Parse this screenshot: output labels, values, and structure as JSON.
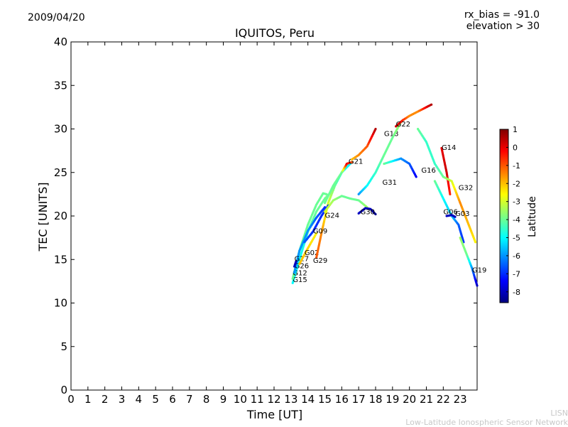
{
  "header": {
    "date": "2009/04/20",
    "rx_bias": "rx_bias = -91.0",
    "elevation": "elevation > 30"
  },
  "credits": {
    "line1": "LISN",
    "line2": "Low-Latitude Ionospheric Sensor Network"
  },
  "chart_data": {
    "type": "scatter",
    "title": "IQUITOS, Peru",
    "xlabel": "Time [UT]",
    "ylabel": "TEC [UNITS]",
    "xlim": [
      0,
      24
    ],
    "ylim": [
      0,
      40
    ],
    "xticks": [
      "0",
      "1",
      "2",
      "3",
      "4",
      "5",
      "6",
      "7",
      "8",
      "9",
      "10",
      "11",
      "12",
      "13",
      "14",
      "15",
      "16",
      "17",
      "18",
      "19",
      "20",
      "21",
      "22",
      "23"
    ],
    "yticks": [
      "0",
      "5",
      "10",
      "15",
      "20",
      "25",
      "30",
      "35",
      "40"
    ],
    "colorbar": {
      "label": "Latitude",
      "range": [
        -8.6,
        1.0
      ],
      "ticks": [
        "1",
        "0",
        "-1",
        "-2",
        "-3",
        "-4",
        "-5",
        "-6",
        "-7",
        "-8"
      ],
      "colors": [
        "#00007f",
        "#0000ff",
        "#007fff",
        "#00ffff",
        "#7fff7f",
        "#ffff00",
        "#ff7f00",
        "#ff0000",
        "#7f0000"
      ]
    },
    "series": [
      {
        "name": "G15",
        "label_at": [
          13.1,
          12.4
        ],
        "points": [
          [
            13.1,
            12.3,
            -5
          ],
          [
            13.5,
            15.0,
            -5
          ],
          [
            14.0,
            18.2,
            -4.5
          ],
          [
            14.5,
            20.5,
            -4
          ],
          [
            15.0,
            22.0,
            -4
          ],
          [
            15.5,
            23.0,
            -3.5
          ]
        ]
      },
      {
        "name": "G12",
        "label_at": [
          13.1,
          13.2
        ],
        "points": [
          [
            13.1,
            12.8,
            -4
          ],
          [
            13.5,
            16.0,
            -4
          ],
          [
            14.0,
            19.0,
            -4
          ],
          [
            14.5,
            21.3,
            -4
          ],
          [
            14.9,
            22.6,
            -4
          ],
          [
            15.1,
            22.5,
            -4
          ]
        ]
      },
      {
        "name": "G26",
        "label_at": [
          13.2,
          14.0
        ],
        "points": [
          [
            13.2,
            13.5,
            -6
          ],
          [
            13.5,
            16.0,
            -6
          ],
          [
            14.0,
            18.3,
            -6
          ],
          [
            14.5,
            19.8,
            -6.5
          ],
          [
            15.0,
            21.0,
            -7
          ]
        ]
      },
      {
        "name": "G27",
        "label_at": [
          13.2,
          14.8
        ],
        "points": [
          [
            13.2,
            14.2,
            -8
          ],
          [
            13.3,
            14.8,
            -8
          ]
        ]
      },
      {
        "name": "G02",
        "label_at": [
          13.8,
          15.5
        ],
        "points": [
          [
            13.5,
            14.5,
            -2
          ],
          [
            14.0,
            16.3,
            -2.2
          ],
          [
            14.5,
            18.0,
            -2.5
          ]
        ]
      },
      {
        "name": "G29",
        "label_at": [
          14.3,
          14.6
        ],
        "points": [
          [
            14.5,
            15.2,
            -1
          ],
          [
            14.8,
            18.0,
            -1.5
          ],
          [
            15.2,
            21.5,
            -3
          ],
          [
            15.6,
            23.5,
            -4
          ],
          [
            16.0,
            25.0,
            -5
          ],
          [
            16.5,
            26.0,
            -5
          ]
        ]
      },
      {
        "name": "G09",
        "label_at": [
          14.3,
          18.0
        ],
        "points": [
          [
            13.8,
            17.0,
            -6.5
          ],
          [
            14.3,
            18.2,
            -7
          ],
          [
            14.8,
            20.0,
            -7
          ],
          [
            15.2,
            21.2,
            -7
          ]
        ]
      },
      {
        "name": "G24",
        "label_at": [
          15.0,
          19.8
        ],
        "points": [
          [
            15.0,
            20.5,
            -3
          ],
          [
            15.5,
            21.8,
            -3.5
          ],
          [
            16.0,
            22.3,
            -4
          ],
          [
            16.5,
            22.0,
            -4
          ],
          [
            17.0,
            21.8,
            -4
          ],
          [
            17.5,
            21.0,
            -3.5
          ]
        ]
      },
      {
        "name": "G21",
        "label_at": [
          16.4,
          26.0
        ],
        "points": [
          [
            15.0,
            21.5,
            -4
          ],
          [
            15.5,
            23.5,
            -4
          ],
          [
            16.0,
            25.0,
            -4
          ],
          [
            16.3,
            26.0,
            0
          ],
          [
            16.6,
            26.2,
            -1
          ]
        ]
      },
      {
        "name": "G18",
        "label_at": [
          18.5,
          29.2
        ],
        "points": [
          [
            16.6,
            26.5,
            -2
          ],
          [
            17.0,
            27.0,
            -1.5
          ],
          [
            17.5,
            28.0,
            -1
          ],
          [
            18.0,
            30.0,
            0.5
          ]
        ]
      },
      {
        "name": "G30",
        "label_at": [
          17.1,
          20.2
        ],
        "points": [
          [
            17.0,
            20.3,
            -8
          ],
          [
            17.4,
            20.9,
            -8
          ],
          [
            17.7,
            20.8,
            -8
          ],
          [
            18.0,
            20.2,
            -8.5
          ]
        ]
      },
      {
        "name": "G31",
        "label_at": [
          18.4,
          23.6
        ],
        "points": [
          [
            17.0,
            22.5,
            -6
          ],
          [
            17.5,
            23.5,
            -5
          ],
          [
            18.0,
            25.0,
            -4.5
          ],
          [
            18.5,
            27.0,
            -4
          ],
          [
            19.0,
            29.0,
            -4
          ],
          [
            19.5,
            30.8,
            -3.5
          ]
        ]
      },
      {
        "name": "G22",
        "label_at": [
          19.2,
          30.3
        ],
        "points": [
          [
            19.2,
            30.3,
            0.3
          ],
          [
            19.6,
            31.0,
            -0.5
          ],
          [
            20.0,
            31.5,
            -1.5
          ],
          [
            20.5,
            32.0,
            -1.5
          ],
          [
            21.0,
            32.5,
            0
          ],
          [
            21.3,
            32.8,
            0.5
          ]
        ]
      },
      {
        "name": "G16",
        "label_at": [
          20.7,
          25.0
        ],
        "points": [
          [
            18.5,
            26.0,
            -4
          ],
          [
            19.0,
            26.3,
            -5
          ],
          [
            19.5,
            26.6,
            -6
          ],
          [
            20.0,
            26.0,
            -6.5
          ],
          [
            20.4,
            24.5,
            -7.5
          ]
        ]
      },
      {
        "name": "G14",
        "label_at": [
          21.9,
          27.6
        ],
        "points": [
          [
            21.9,
            27.8,
            0
          ],
          [
            22.2,
            25.0,
            0.3
          ],
          [
            22.4,
            22.5,
            -0.5
          ]
        ]
      },
      {
        "name": "G32",
        "label_at": [
          22.9,
          23.0
        ],
        "points": [
          [
            20.5,
            30.0,
            -4
          ],
          [
            21.0,
            28.5,
            -4.5
          ],
          [
            21.5,
            26.0,
            -4.5
          ],
          [
            22.0,
            24.5,
            -4
          ],
          [
            22.5,
            24.0,
            -3
          ],
          [
            23.0,
            21.5,
            -1.5
          ],
          [
            23.5,
            19.0,
            -2
          ],
          [
            23.9,
            17.0,
            -2.5
          ]
        ]
      },
      {
        "name": "G06",
        "label_at": [
          22.0,
          20.2
        ],
        "points": [
          [
            21.5,
            24.0,
            -4
          ],
          [
            22.0,
            22.0,
            -5
          ],
          [
            22.5,
            20.0,
            -5.5
          ],
          [
            22.9,
            19.0,
            -6.5
          ],
          [
            23.2,
            17.0,
            -7
          ]
        ]
      },
      {
        "name": "G03",
        "label_at": [
          22.7,
          20.0
        ],
        "points": [
          [
            22.2,
            20.0,
            -8
          ],
          [
            22.5,
            20.1,
            -8
          ],
          [
            22.7,
            19.9,
            -8
          ]
        ]
      },
      {
        "name": "G19",
        "label_at": [
          23.7,
          13.5
        ],
        "points": [
          [
            23.0,
            17.5,
            -3.5
          ],
          [
            23.4,
            15.5,
            -4
          ],
          [
            23.7,
            14.0,
            -6
          ],
          [
            24.0,
            12.0,
            -8
          ]
        ]
      }
    ]
  }
}
